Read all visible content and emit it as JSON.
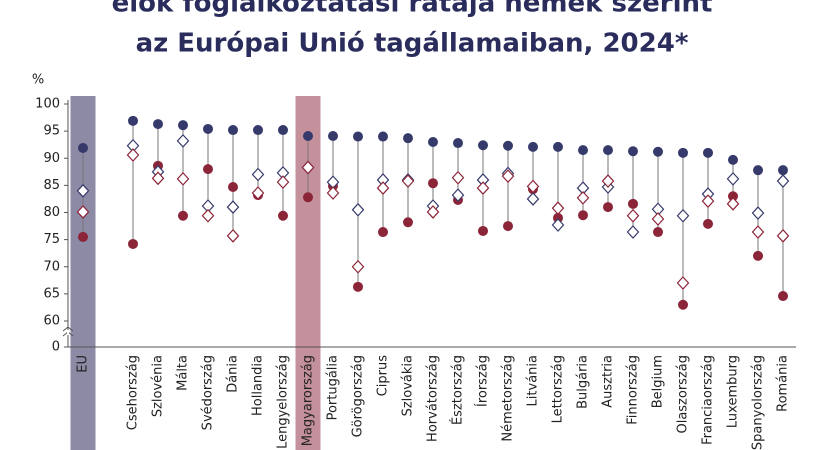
{
  "chart_data": {
    "type": "dot",
    "title_lines": [
      "élők foglalkoztatási rátája nemek szerint",
      "az Európai Unió tagállamaiban, 2024*"
    ],
    "y_unit": "%",
    "categories": [
      "EU",
      "Csehország",
      "Szlovénia",
      "Málta",
      "Svédország",
      "Dánia",
      "Hollandia",
      "Lengyelország",
      "Magyarország",
      "Portugália",
      "Görögország",
      "Ciprus",
      "Szlovákia",
      "Horvátország",
      "Észtország",
      "Írország",
      "Németország",
      "Litvánia",
      "Lettország",
      "Bulgária",
      "Ausztria",
      "Finnország",
      "Belgium",
      "Olaszország",
      "Franciaország",
      "Luxemburg",
      "Spanyolország",
      "Románia"
    ],
    "series": [
      {
        "marker": "circle",
        "color": "#363a6b",
        "fill": "#363a6b",
        "values": [
          91.9,
          96.9,
          96.3,
          96.1,
          95.4,
          95.2,
          95.2,
          95.2,
          94.1,
          94.1,
          94.0,
          94.0,
          93.7,
          93.0,
          92.8,
          92.4,
          92.3,
          92.1,
          92.1,
          91.5,
          91.5,
          91.3,
          91.2,
          91.0,
          91.0,
          89.7,
          87.8,
          87.8
        ]
      },
      {
        "marker": "circle",
        "color": "#8b2538",
        "fill": "#8b2538",
        "values": [
          75.5,
          74.2,
          88.6,
          79.4,
          88.0,
          84.7,
          83.2,
          79.4,
          82.8,
          84.9,
          66.3,
          76.4,
          78.2,
          85.4,
          82.3,
          76.6,
          77.5,
          84.3,
          79.0,
          79.5,
          81.0,
          81.6,
          76.4,
          63.0,
          77.9,
          83.0,
          72.0,
          64.6
        ]
      },
      {
        "marker": "diamond",
        "color": "#363a6b",
        "fill": "#ffffff",
        "values": [
          84.0,
          92.3,
          87.5,
          93.2,
          81.2,
          81.0,
          87.0,
          87.3,
          88.3,
          85.6,
          80.5,
          86.0,
          86.0,
          81.2,
          83.2,
          86.0,
          87.2,
          82.5,
          77.7,
          84.5,
          84.7,
          76.4,
          80.6,
          79.4,
          83.4,
          86.2,
          79.9,
          85.8
        ]
      },
      {
        "marker": "diamond",
        "color": "#8b2538",
        "fill": "#ffffff",
        "values": [
          80.1,
          90.6,
          86.3,
          86.2,
          79.4,
          75.7,
          83.6,
          85.6,
          88.3,
          83.6,
          70.0,
          84.5,
          85.8,
          80.1,
          86.4,
          84.5,
          86.7,
          84.8,
          80.8,
          82.7,
          85.8,
          79.4,
          78.8,
          67.0,
          82.1,
          81.6,
          76.4,
          75.7
        ]
      }
    ],
    "highlights": [
      {
        "index": 0,
        "color": "#8d8aa6"
      },
      {
        "index": 8,
        "color": "#c4909b"
      }
    ],
    "ylim": [
      0,
      100
    ],
    "axis_break": 60,
    "yticks": [
      0,
      60,
      65,
      70,
      75,
      80,
      85,
      90,
      95,
      100
    ]
  }
}
